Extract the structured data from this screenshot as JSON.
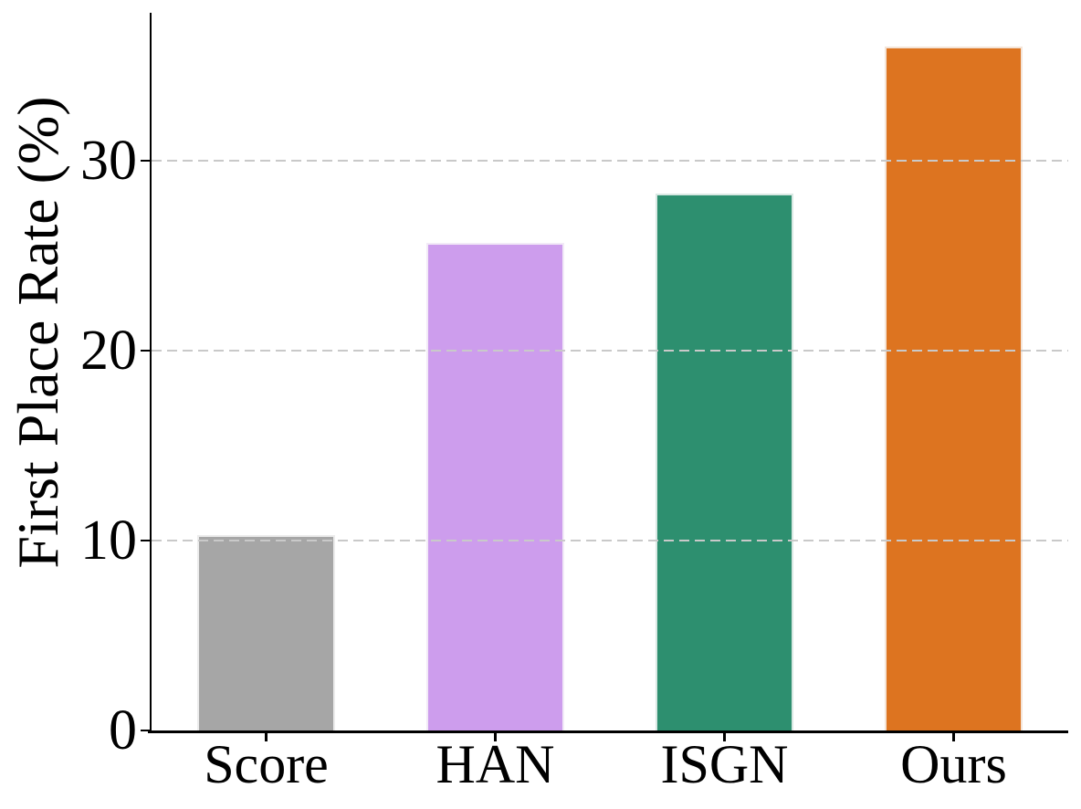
{
  "chart_data": {
    "type": "bar",
    "title": "",
    "xlabel": "",
    "ylabel": "First Place Rate (%)",
    "categories": [
      "Score",
      "HAN",
      "ISGN",
      "Ours"
    ],
    "values": [
      10.3,
      25.7,
      28.3,
      36.0
    ],
    "bar_colors": [
      "#a6a6a6",
      "#cd9ded",
      "#2d8f6f",
      "#dd7420"
    ],
    "ytick_labels": [
      "0",
      "10",
      "20",
      "30"
    ],
    "yticks": [
      0,
      10,
      20,
      30
    ],
    "ylim": [
      0,
      37.8
    ],
    "grid": "horizontal-dashed-over-bars",
    "gridline_color": "#c9c9c9",
    "axis_color": "#000000",
    "text_color": "#000000",
    "background": "#ffffff",
    "legend": "none"
  }
}
